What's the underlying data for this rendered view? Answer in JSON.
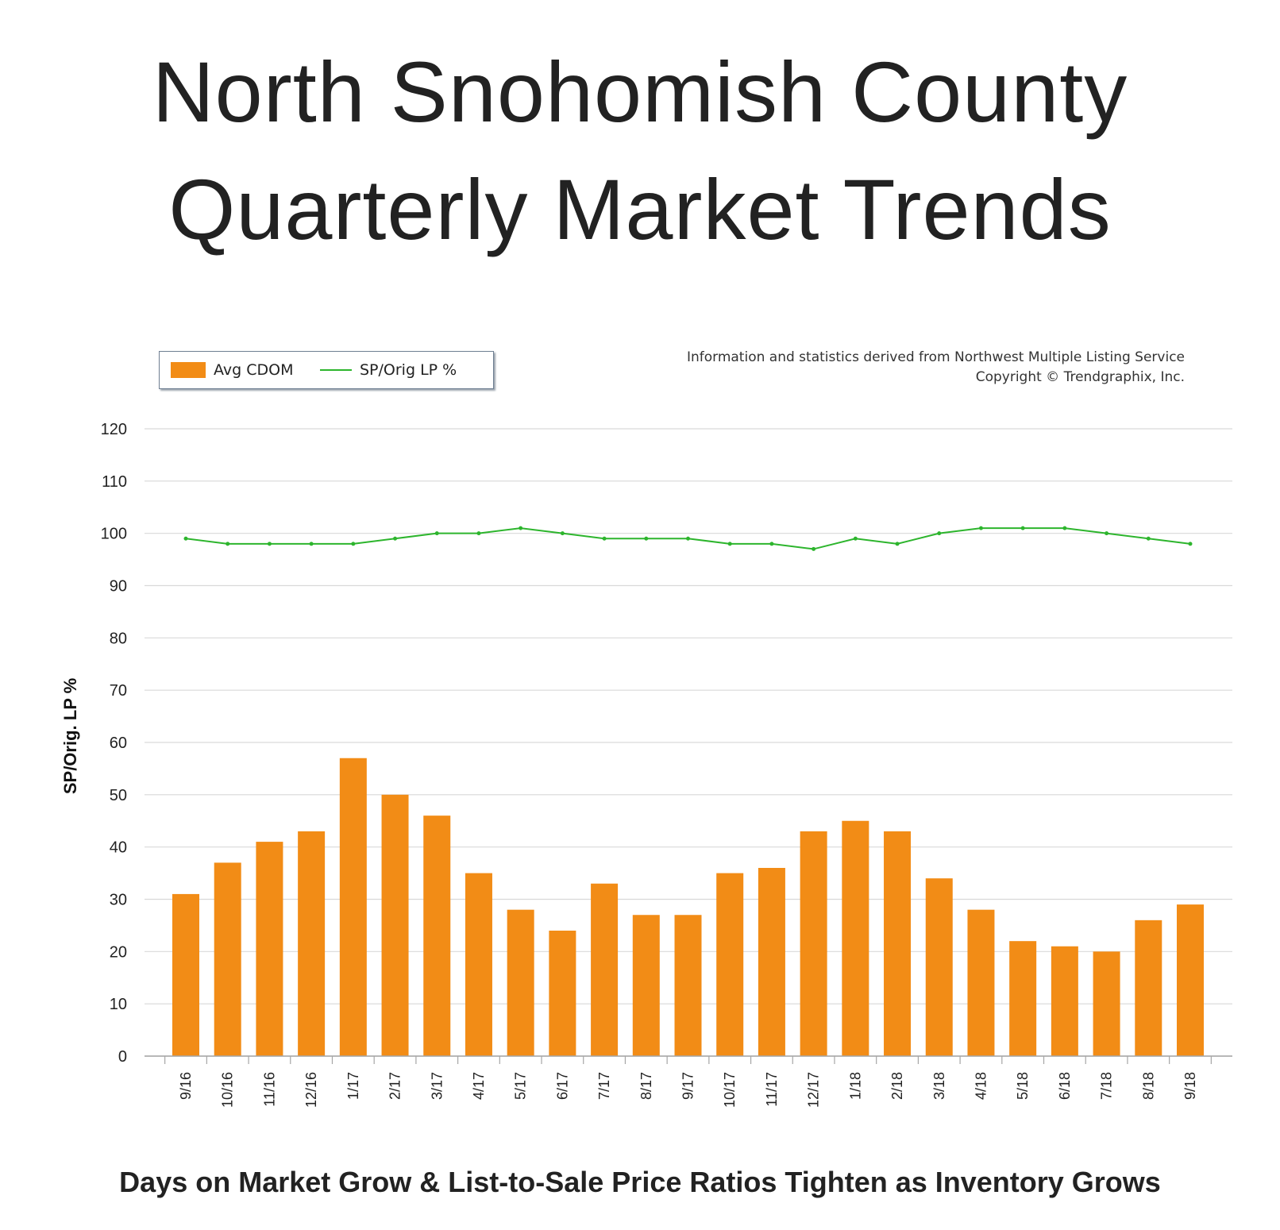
{
  "title": {
    "line1": "North Snohomish County",
    "line2": "Quarterly Market Trends"
  },
  "caption": "Days on Market Grow & List-to-Sale Price Ratios Tighten as Inventory Grows",
  "source": {
    "line1": "Information and statistics derived from Northwest Multiple Listing Service",
    "line2": "Copyright © Trendgraphix, Inc."
  },
  "colors": {
    "bar": "#f28c16",
    "line": "#2db52d",
    "grid": "#d9d9d9",
    "text": "#222222"
  },
  "chart_data": {
    "type": "bar",
    "ylabel": "SP/Orig. LP %",
    "ylim": [
      0,
      120
    ],
    "yticks": [
      0,
      10,
      20,
      30,
      40,
      50,
      60,
      70,
      80,
      90,
      100,
      110,
      120
    ],
    "grid": true,
    "legend": "top-left",
    "categories": [
      "9/16",
      "10/16",
      "11/16",
      "12/16",
      "1/17",
      "2/17",
      "3/17",
      "4/17",
      "5/17",
      "6/17",
      "7/17",
      "8/17",
      "9/17",
      "10/17",
      "11/17",
      "12/17",
      "1/18",
      "2/18",
      "3/18",
      "4/18",
      "5/18",
      "6/18",
      "7/18",
      "8/18",
      "9/18"
    ],
    "series": [
      {
        "name": "Avg CDOM",
        "type": "bar",
        "values": [
          31,
          37,
          41,
          43,
          57,
          50,
          46,
          35,
          28,
          24,
          33,
          27,
          27,
          35,
          36,
          43,
          45,
          43,
          34,
          28,
          22,
          21,
          20,
          26,
          29
        ]
      },
      {
        "name": "SP/Orig LP %",
        "type": "line",
        "values": [
          99,
          98,
          98,
          98,
          98,
          99,
          100,
          100,
          101,
          100,
          99,
          99,
          99,
          98,
          98,
          97,
          99,
          98,
          100,
          101,
          101,
          101,
          100,
          99,
          98
        ]
      }
    ]
  }
}
